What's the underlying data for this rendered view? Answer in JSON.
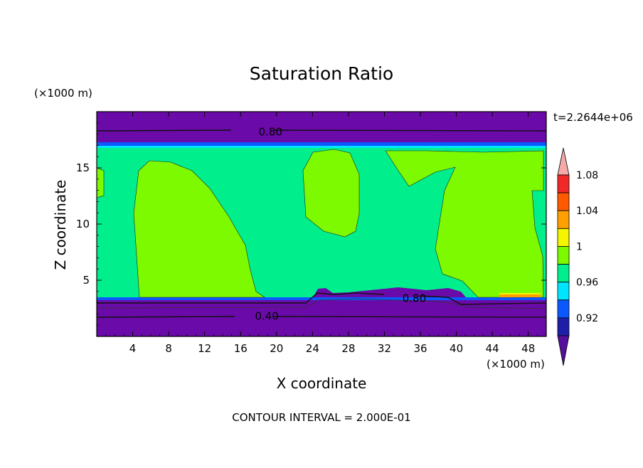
{
  "chart_data": {
    "type": "contour",
    "title": "Saturation Ratio",
    "xlabel": "X coordinate",
    "ylabel": "Z coordinate",
    "x_unit": "(×1000 m)",
    "y_unit": "(×1000 m)",
    "time_label": "t=2.2644e+06",
    "footer": "CONTOUR INTERVAL = 2.000E-01",
    "xlim": [
      0,
      50
    ],
    "ylim": [
      0,
      20
    ],
    "x_ticks": [
      4,
      8,
      12,
      16,
      20,
      24,
      28,
      32,
      36,
      40,
      44,
      48
    ],
    "y_ticks": [
      5,
      10,
      15
    ],
    "contour_labels": [
      {
        "text": "0.80",
        "x": 18,
        "y": 18.2
      },
      {
        "text": "0.80",
        "x": 34,
        "y": 3.4
      },
      {
        "text": "0.40",
        "x": 17.6,
        "y": 1.8
      }
    ],
    "colorbar": {
      "levels": [
        "0.92",
        "0.96",
        "1",
        "1.04",
        "1.08"
      ],
      "colors": [
        "#55109b",
        "#1e1ea8",
        "#0c58ff",
        "#00e5ff",
        "#00ef8c",
        "#7dfa00",
        "#f5f500",
        "#ffa000",
        "#ff5a00",
        "#f02828",
        "#f5aaaa"
      ]
    },
    "region_colors": {
      "dry": "#6a0aa8",
      "near_one": "#00ef8c",
      "supersat": "#7dfa00",
      "band": "#0c58ff",
      "orange": "#ffa000",
      "yellow": "#f5f500"
    }
  }
}
